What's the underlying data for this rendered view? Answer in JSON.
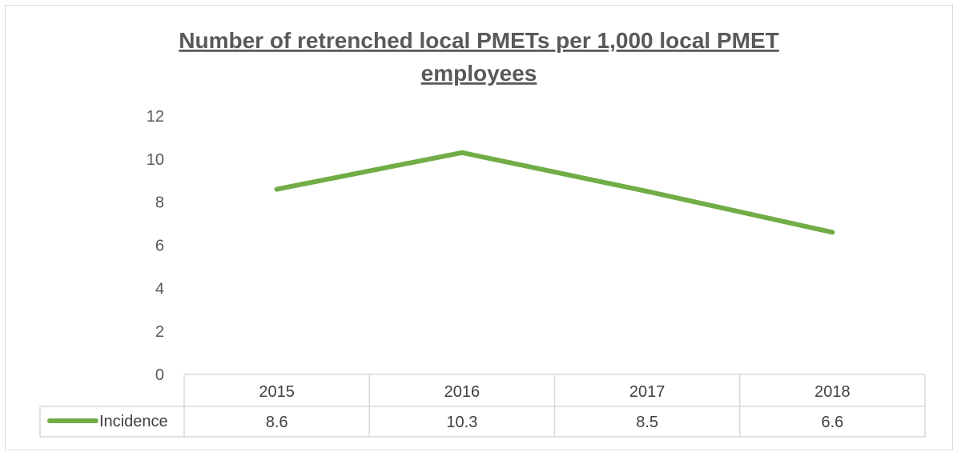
{
  "chart_data": {
    "type": "line",
    "title_lines": [
      "Number of retrenched local PMETs per 1,000 local PMET",
      "employees"
    ],
    "categories": [
      "2015",
      "2016",
      "2017",
      "2018"
    ],
    "series": [
      {
        "name": "Incidence",
        "values": [
          8.6,
          10.3,
          8.5,
          6.6
        ],
        "value_labels": [
          "8.6",
          "10.3",
          "8.5",
          "6.6"
        ],
        "color": "#70ad47"
      }
    ],
    "yticks": [
      "0",
      "2",
      "4",
      "6",
      "8",
      "10",
      "12"
    ],
    "ylim": [
      0,
      12
    ],
    "grid": false,
    "legend": "data-table"
  }
}
